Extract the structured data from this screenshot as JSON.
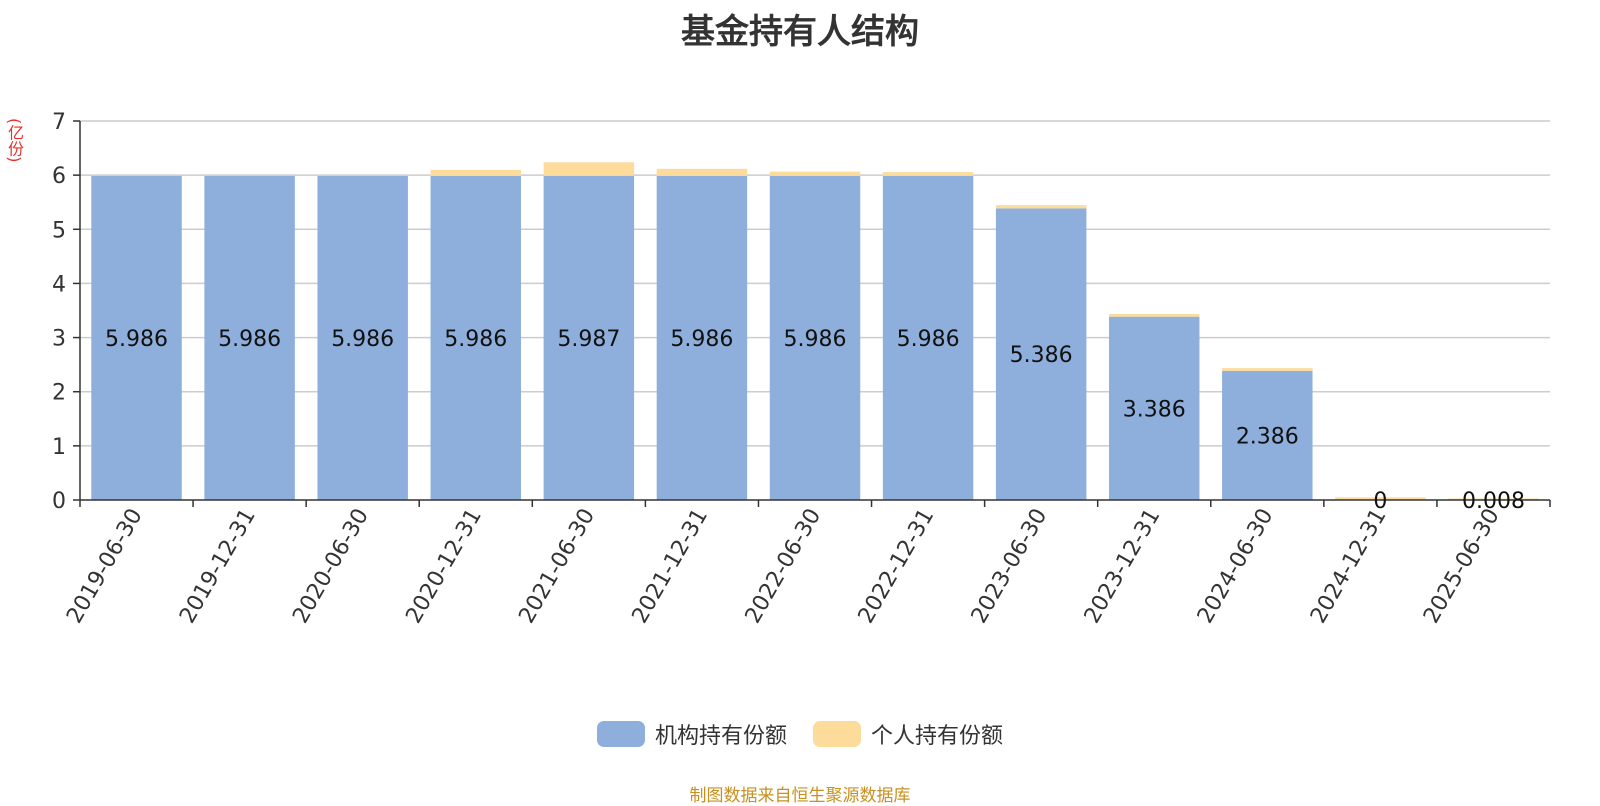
{
  "chart_data": {
    "type": "bar",
    "stacked": true,
    "title": "基金持有人结构",
    "ylabel": "(亿份)",
    "ylim": [
      0,
      7
    ],
    "yticks": [
      0,
      1,
      2,
      3,
      4,
      5,
      6,
      7
    ],
    "grid": true,
    "legend_position": "bottom",
    "categories": [
      "2019-06-30",
      "2019-12-31",
      "2020-06-30",
      "2020-12-31",
      "2021-06-30",
      "2021-12-31",
      "2022-06-30",
      "2022-12-31",
      "2023-06-30",
      "2023-12-31",
      "2024-06-30",
      "2024-12-31",
      "2025-06-30"
    ],
    "series": [
      {
        "name": "机构持有份额",
        "color": "#8eaedb",
        "values": [
          5.986,
          5.986,
          5.986,
          5.986,
          5.987,
          5.986,
          5.986,
          5.986,
          5.386,
          3.386,
          2.386,
          0,
          0.008
        ],
        "labels": [
          "5.986",
          "5.986",
          "5.986",
          "5.986",
          "5.987",
          "5.986",
          "5.986",
          "5.986",
          "5.386",
          "3.386",
          "2.386",
          "0",
          "0.008"
        ]
      },
      {
        "name": "个人持有份额",
        "color": "#fddb9b",
        "values": [
          0.002,
          0.002,
          0.005,
          0.11,
          0.25,
          0.13,
          0.08,
          0.07,
          0.06,
          0.05,
          0.05,
          0.05,
          0.02
        ]
      }
    ]
  },
  "source": "制图数据来自恒生聚源数据库"
}
